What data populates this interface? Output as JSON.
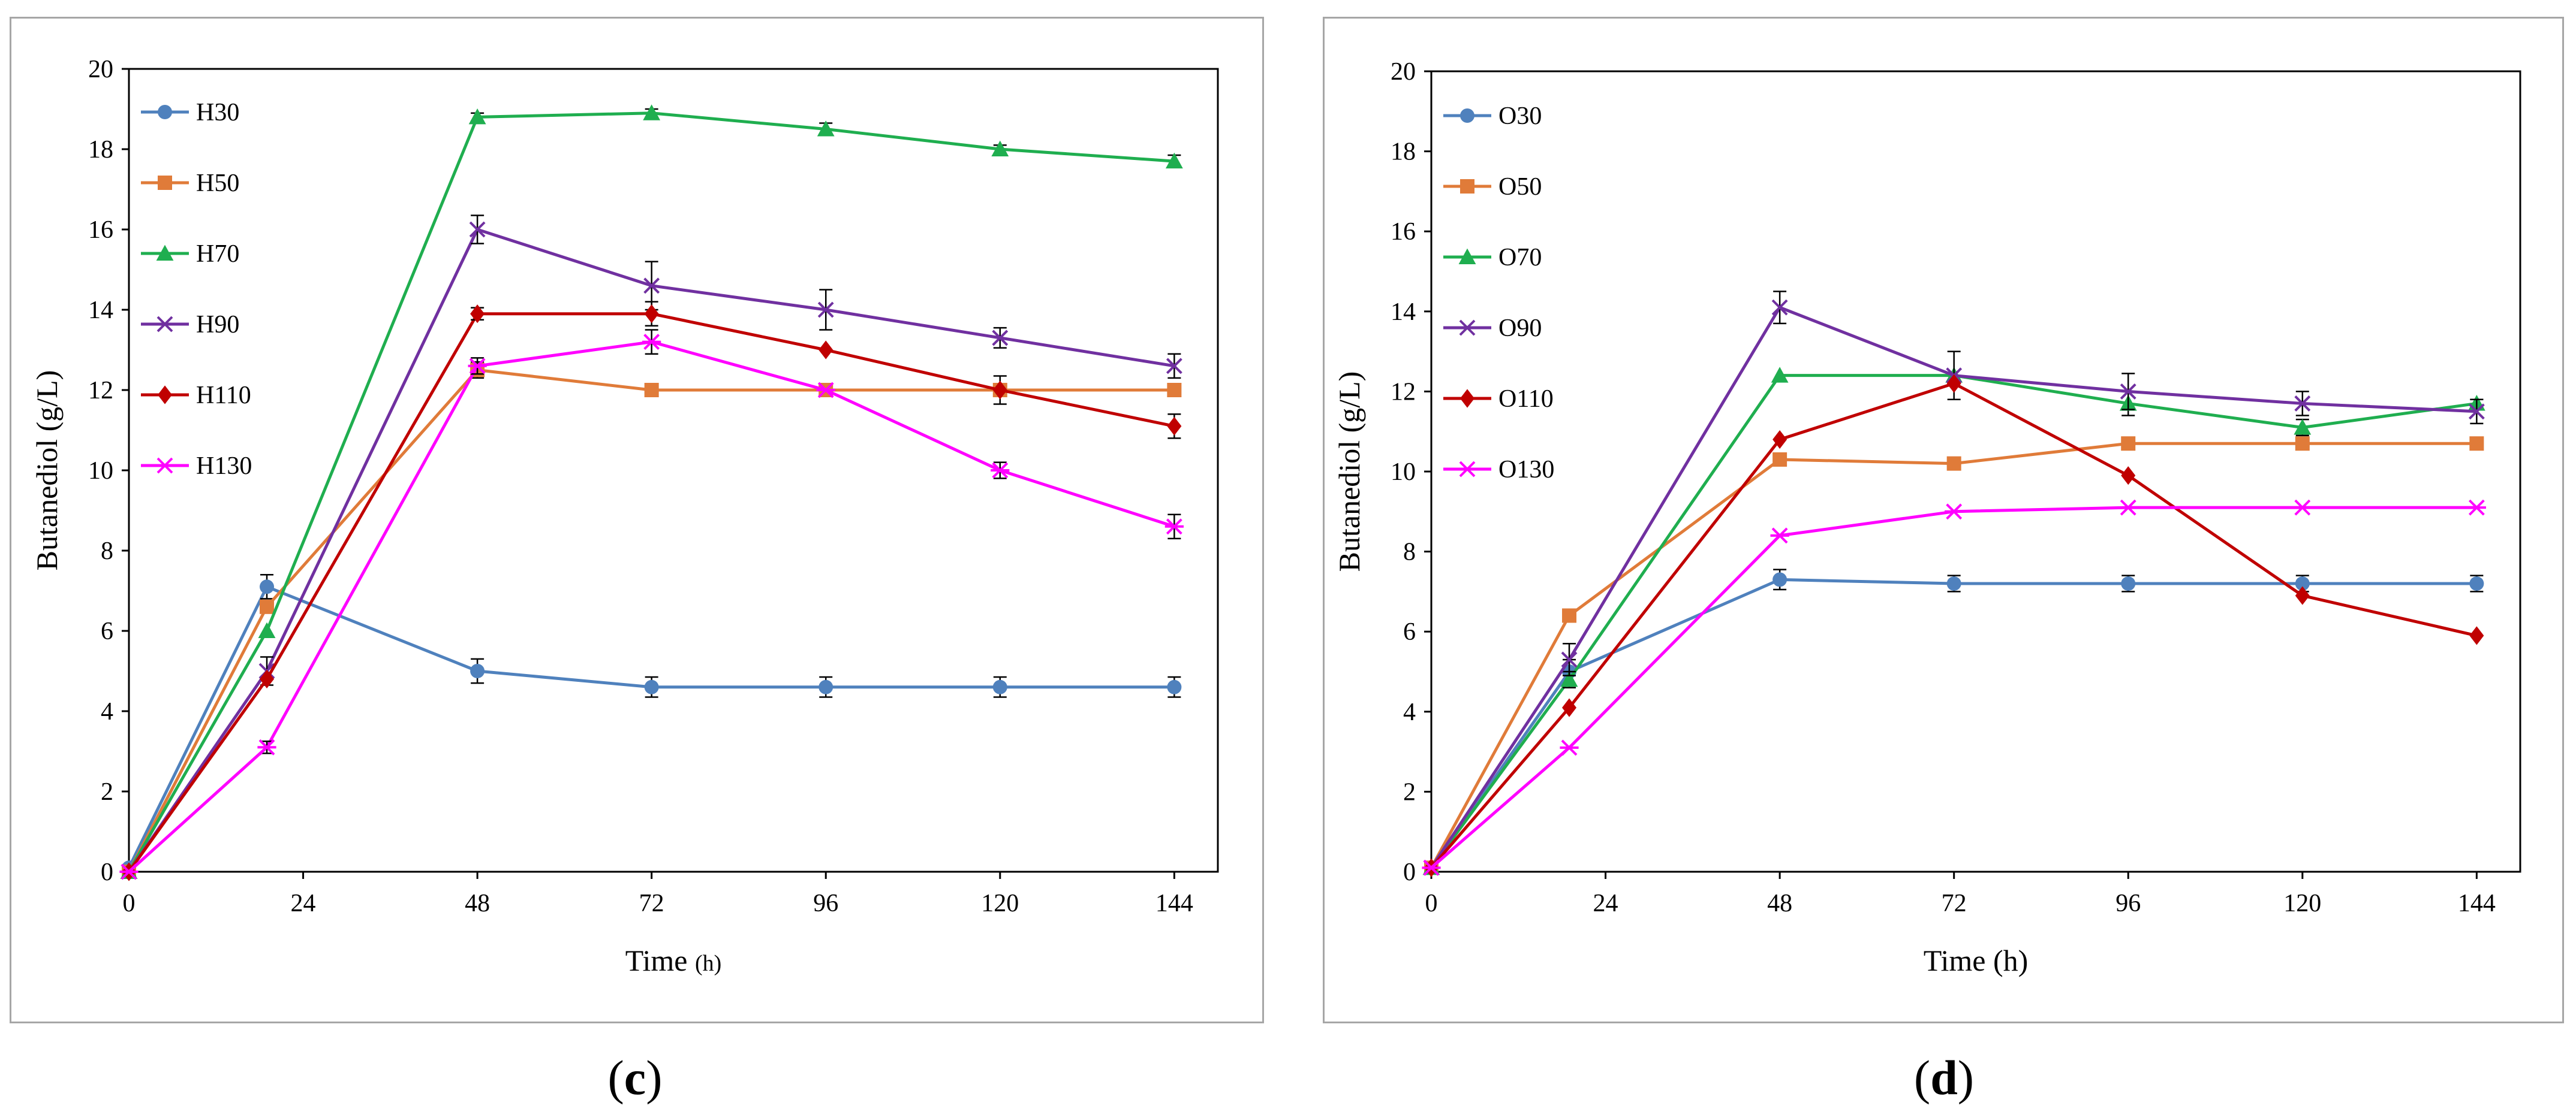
{
  "captions": {
    "c": "c",
    "d": "d"
  },
  "chart_data": [
    {
      "id": "c",
      "type": "line",
      "title": "",
      "xlabel": "Time (h)",
      "xlabel_main": "Time",
      "xlabel_unit": "(h)",
      "ylabel": "Butanediol (g/L)",
      "xlim": [
        0,
        150
      ],
      "ylim": [
        0,
        20
      ],
      "x_ticks": [
        0,
        24,
        48,
        72,
        96,
        120,
        144
      ],
      "y_ticks": [
        0,
        2,
        4,
        6,
        8,
        10,
        12,
        14,
        16,
        18,
        20
      ],
      "x": [
        0,
        19,
        48,
        72,
        96,
        120,
        144
      ],
      "legend_position": "top-left",
      "series": [
        {
          "name": "H30",
          "color": "#4f81bd",
          "marker": "circle",
          "values": [
            0.1,
            7.1,
            5.0,
            4.6,
            4.6,
            4.6,
            4.6
          ],
          "errors": [
            0,
            0.3,
            0.3,
            0.25,
            0.25,
            0.25,
            0.25
          ]
        },
        {
          "name": "H50",
          "color": "#e07b39",
          "marker": "square",
          "values": [
            0.0,
            6.6,
            12.5,
            12.0,
            12.0,
            12.0,
            12.0
          ],
          "errors": [
            0,
            0,
            0.2,
            0,
            0,
            0,
            0
          ]
        },
        {
          "name": "H70",
          "color": "#1fae4f",
          "marker": "triangle",
          "values": [
            0.0,
            6.0,
            18.8,
            18.9,
            18.5,
            18.0,
            17.7
          ],
          "errors": [
            0,
            0,
            0.1,
            0.1,
            0.15,
            0.1,
            0.15
          ]
        },
        {
          "name": "H90",
          "color": "#7030a0",
          "marker": "x",
          "values": [
            0.0,
            5.0,
            16.0,
            14.6,
            14.0,
            13.3,
            12.6
          ],
          "errors": [
            0,
            0.35,
            0.35,
            0.6,
            0.5,
            0.25,
            0.3
          ]
        },
        {
          "name": "H110",
          "color": "#c00000",
          "marker": "diamond",
          "values": [
            0.0,
            4.8,
            13.9,
            13.9,
            13.0,
            12.0,
            11.1
          ],
          "errors": [
            0,
            0,
            0.15,
            0.3,
            0,
            0.35,
            0.3
          ]
        },
        {
          "name": "H130",
          "color": "#ff00ff",
          "marker": "star",
          "values": [
            0.0,
            3.1,
            12.6,
            13.2,
            12.0,
            10.0,
            8.6
          ],
          "errors": [
            0,
            0.15,
            0.2,
            0.3,
            0,
            0.2,
            0.3
          ]
        }
      ]
    },
    {
      "id": "d",
      "type": "line",
      "title": "",
      "xlabel": "Time (h)",
      "xlabel_main": "Time",
      "xlabel_unit": "(h)",
      "ylabel": "Butanediol (g/L)",
      "xlim": [
        0,
        150
      ],
      "ylim": [
        0,
        20
      ],
      "x_ticks": [
        0,
        24,
        48,
        72,
        96,
        120,
        144
      ],
      "y_ticks": [
        0,
        2,
        4,
        6,
        8,
        10,
        12,
        14,
        16,
        18,
        20
      ],
      "x": [
        0,
        19,
        48,
        72,
        96,
        120,
        144
      ],
      "legend_position": "top-left",
      "series": [
        {
          "name": "O30",
          "color": "#4f81bd",
          "marker": "circle",
          "values": [
            0.1,
            5.0,
            7.3,
            7.2,
            7.2,
            7.2,
            7.2
          ],
          "errors": [
            0,
            0.3,
            0.25,
            0.2,
            0.2,
            0.2,
            0.2
          ]
        },
        {
          "name": "O50",
          "color": "#e07b39",
          "marker": "square",
          "values": [
            0.1,
            6.4,
            10.3,
            10.2,
            10.7,
            10.7,
            10.7
          ],
          "errors": [
            0,
            0,
            0,
            0,
            0,
            0,
            0
          ]
        },
        {
          "name": "O70",
          "color": "#1fae4f",
          "marker": "triangle",
          "values": [
            0.1,
            4.8,
            12.4,
            12.4,
            11.7,
            11.1,
            11.7
          ],
          "errors": [
            0,
            0.2,
            0,
            0,
            0.3,
            0.2,
            0.1
          ]
        },
        {
          "name": "O90",
          "color": "#7030a0",
          "marker": "x",
          "values": [
            0.1,
            5.3,
            14.1,
            12.4,
            12.0,
            11.7,
            11.5
          ],
          "errors": [
            0,
            0.4,
            0.4,
            0.6,
            0.45,
            0.3,
            0.3
          ]
        },
        {
          "name": "O110",
          "color": "#c00000",
          "marker": "diamond",
          "values": [
            0.1,
            4.1,
            10.8,
            12.2,
            9.9,
            6.9,
            5.9
          ],
          "errors": [
            0,
            0,
            0,
            0,
            0,
            0,
            0
          ]
        },
        {
          "name": "O130",
          "color": "#ff00ff",
          "marker": "star",
          "values": [
            0.1,
            3.1,
            8.4,
            9.0,
            9.1,
            9.1,
            9.1
          ],
          "errors": [
            0,
            0,
            0,
            0,
            0,
            0,
            0
          ]
        }
      ]
    }
  ]
}
